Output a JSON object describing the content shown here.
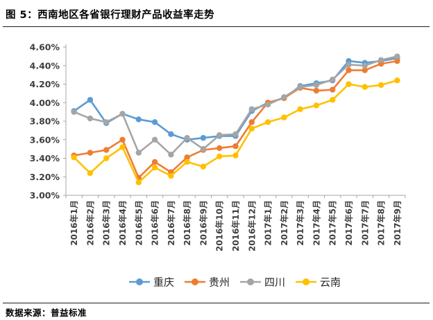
{
  "header": {
    "title": "图 5：西南地区各省银行理财产品收益率走势"
  },
  "footer": {
    "source": "数据来源：普益标准"
  },
  "chart_data": {
    "type": "line",
    "title": "图 5：西南地区各省银行理财产品收益率走势",
    "categories": [
      "2016年1月",
      "2016年2月",
      "2016年3月",
      "2016年4月",
      "2016年5月",
      "2016年6月",
      "2016年7月",
      "2016年8月",
      "2016年9月",
      "2016年10月",
      "2016年11月",
      "2016年12月",
      "2017年1月",
      "2017年2月",
      "2017年3月",
      "2017年4月",
      "2017年5月",
      "2017年6月",
      "2017年7月",
      "2017年8月",
      "2017年9月"
    ],
    "series": [
      {
        "name": "重庆",
        "color": "#5B9BD5",
        "values": [
          3.91,
          4.03,
          3.78,
          3.88,
          3.82,
          3.79,
          3.66,
          3.6,
          3.62,
          3.64,
          3.64,
          3.91,
          4.0,
          4.05,
          4.18,
          4.21,
          4.24,
          4.45,
          4.43,
          4.45,
          4.48
        ]
      },
      {
        "name": "贵州",
        "color": "#ED7D31",
        "values": [
          3.43,
          3.46,
          3.49,
          3.6,
          3.19,
          3.36,
          3.25,
          3.41,
          3.49,
          3.51,
          3.53,
          3.79,
          4.0,
          4.05,
          4.16,
          4.13,
          4.14,
          4.35,
          4.35,
          4.42,
          4.45
        ]
      },
      {
        "name": "四川",
        "color": "#A5A5A5",
        "values": [
          3.9,
          3.83,
          3.79,
          3.88,
          3.46,
          3.6,
          3.44,
          3.62,
          3.5,
          3.65,
          3.66,
          3.93,
          3.98,
          4.06,
          4.17,
          4.19,
          4.25,
          4.41,
          4.4,
          4.46,
          4.5
        ]
      },
      {
        "name": "云南",
        "color": "#FFC000",
        "values": [
          3.41,
          3.24,
          3.4,
          3.52,
          3.14,
          3.3,
          3.21,
          3.36,
          3.31,
          3.42,
          3.43,
          3.72,
          3.79,
          3.84,
          3.93,
          3.97,
          4.03,
          4.2,
          4.17,
          4.19,
          4.24
        ]
      }
    ],
    "ylim": [
      3.0,
      4.6
    ],
    "ytick_step": 0.2,
    "ytick_labels": [
      "4.60%",
      "4.40%",
      "4.20%",
      "4.00%",
      "3.80%",
      "3.60%",
      "3.40%",
      "3.20%",
      "3.00%"
    ],
    "xlabel": "",
    "ylabel": "",
    "grid": false,
    "legend_position": "bottom",
    "axis_color": "#A6A6A6",
    "label_color": "#3f3f3f"
  }
}
